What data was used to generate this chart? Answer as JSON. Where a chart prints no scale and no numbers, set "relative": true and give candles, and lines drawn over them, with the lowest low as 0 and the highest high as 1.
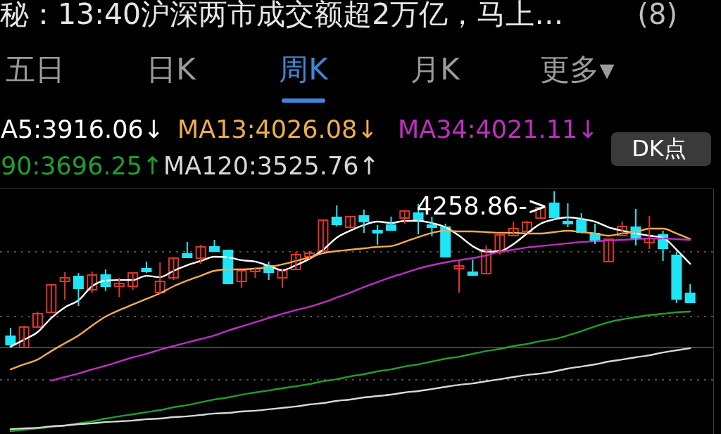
{
  "chart_data": {
    "type": "candlestick",
    "relative": true,
    "tick_labels": false,
    "legend": "top",
    "categories": [
      null,
      null,
      null,
      null,
      null,
      null,
      null,
      null,
      null,
      null,
      null,
      null,
      null,
      null,
      null,
      null,
      null,
      null,
      null,
      null,
      null,
      null,
      null,
      null,
      null,
      null,
      null,
      null,
      null,
      null,
      null,
      null,
      null,
      null,
      null,
      null,
      null,
      null,
      null,
      null,
      null,
      null,
      null,
      null,
      null,
      null,
      null,
      null,
      null,
      null,
      null
    ],
    "ohlc": [
      [
        0.072,
        0.126,
        0.009,
        0.018
      ],
      [
        0,
        0.14,
        0,
        0.131
      ],
      [
        0.131,
        0.23,
        0.131,
        0.216
      ],
      [
        0.225,
        0.405,
        0.221,
        0.401
      ],
      [
        0.423,
        0.482,
        0.306,
        0.446
      ],
      [
        0.455,
        0.477,
        0.266,
        0.378
      ],
      [
        0.369,
        0.486,
        0.351,
        0.464
      ],
      [
        0.464,
        0.5,
        0.36,
        0.392
      ],
      [
        0.392,
        0.446,
        0.324,
        0.41
      ],
      [
        0.392,
        0.482,
        0.369,
        0.477
      ],
      [
        0.505,
        0.55,
        0.477,
        0.486
      ],
      [
        0.351,
        0.545,
        0.342,
        0.423
      ],
      [
        0.446,
        0.577,
        0.432,
        0.572
      ],
      [
        0.599,
        0.676,
        0.572,
        0.577
      ],
      [
        0.572,
        0.658,
        0.536,
        0.644
      ],
      [
        0.644,
        0.689,
        0.613,
        0.617
      ],
      [
        0.622,
        0.626,
        0.405,
        0.41
      ],
      [
        0.423,
        0.495,
        0.383,
        0.491
      ],
      [
        0.486,
        0.514,
        0.446,
        0.505
      ],
      [
        0.523,
        0.55,
        0.432,
        0.482
      ],
      [
        0.446,
        0.5,
        0.383,
        0.491
      ],
      [
        0.5,
        0.613,
        0.495,
        0.595
      ],
      [
        0.581,
        0.617,
        0.568,
        0.604
      ],
      [
        0.617,
        0.82,
        0.613,
        0.815
      ],
      [
        0.833,
        0.91,
        0.775,
        0.788
      ],
      [
        0.77,
        0.842,
        0.761,
        0.838
      ],
      [
        0.842,
        0.883,
        0.734,
        0.806
      ],
      [
        0.748,
        0.784,
        0.658,
        0.734
      ],
      [
        0.784,
        0.838,
        0.752,
        0.752
      ],
      [
        0.829,
        0.878,
        0.793,
        0.874
      ],
      [
        0.86,
        0.919,
        0.725,
        0.815
      ],
      [
        0.784,
        0.838,
        0.712,
        0.77
      ],
      [
        0.77,
        0.793,
        0.577,
        0.581
      ],
      [
        0.505,
        0.554,
        0.351,
        0.523
      ],
      [
        0.482,
        0.563,
        0.459,
        0.464
      ],
      [
        0.473,
        0.653,
        0.468,
        0.626
      ],
      [
        0.613,
        0.725,
        0.595,
        0.721
      ],
      [
        0.716,
        0.806,
        0.712,
        0.761
      ],
      [
        0.743,
        0.811,
        0.739,
        0.802
      ],
      [
        0.829,
        0.901,
        0.824,
        0.896
      ],
      [
        0.923,
        1,
        0.82,
        0.833
      ],
      [
        0.806,
        0.923,
        0.77,
        0.793
      ],
      [
        0.815,
        0.86,
        0.73,
        0.739
      ],
      [
        0.73,
        0.793,
        0.662,
        0.685
      ],
      [
        0.55,
        0.698,
        0.545,
        0.694
      ],
      [
        0.716,
        0.806,
        0.712,
        0.775
      ],
      [
        0.77,
        0.887,
        0.653,
        0.703
      ],
      [
        0.671,
        0.842,
        0.631,
        0.698
      ],
      [
        0.721,
        0.748,
        0.554,
        0.635
      ],
      [
        0.59,
        0.613,
        0.284,
        0.311
      ],
      [
        0.347,
        0.405,
        0.284,
        0.288
      ]
    ],
    "colors": [
      "#1fe5f5",
      "#e0352b",
      "#e0352b",
      "#e0352b",
      "#e0352b",
      "#1fe5f5",
      "#e0352b",
      "#1fe5f5",
      "#e0352b",
      "#e0352b",
      "#1fe5f5",
      "#e0352b",
      "#e0352b",
      "#1fe5f5",
      "#e0352b",
      "#1fe5f5",
      "#1fe5f5",
      "#e0352b",
      "#e0352b",
      "#1fe5f5",
      "#e0352b",
      "#e0352b",
      "#e0352b",
      "#e0352b",
      "#1fe5f5",
      "#e0352b",
      "#1fe5f5",
      "#1fe5f5",
      "#1fe5f5",
      "#e0352b",
      "#1fe5f5",
      "#1fe5f5",
      "#1fe5f5",
      "#e0352b",
      "#1fe5f5",
      "#e0352b",
      "#e0352b",
      "#e0352b",
      "#e0352b",
      "#e0352b",
      "#1fe5f5",
      "#1fe5f5",
      "#1fe5f5",
      "#1fe5f5",
      "#e0352b",
      "#e0352b",
      "#1fe5f5",
      "#e0352b",
      "#1fe5f5",
      "#1fe5f5",
      "#1fe5f5"
    ],
    "series": [
      {
        "name": "A5:3916.06↓",
        "type": "line",
        "color": "#ffffff",
        "values": [
          0.005,
          0.05,
          0.099,
          0.189,
          0.257,
          0.302,
          0.392,
          0.428,
          0.432,
          0.432,
          0.459,
          0.45,
          0.491,
          0.527,
          0.554,
          0.581,
          0.577,
          0.559,
          0.55,
          0.523,
          0.495,
          0.527,
          0.568,
          0.626,
          0.703,
          0.748,
          0.784,
          0.806,
          0.797,
          0.811,
          0.811,
          0.797,
          0.77,
          0.716,
          0.649,
          0.613,
          0.617,
          0.662,
          0.73,
          0.793,
          0.82,
          0.833,
          0.824,
          0.806,
          0.77,
          0.748,
          0.73,
          0.716,
          0.703,
          0.626,
          0.536
        ]
      },
      {
        "name": "MA13:4026.08↓",
        "type": "line",
        "color": "#f0ad4e",
        "values": [
          -0.14,
          -0.108,
          -0.077,
          -0.023,
          0.027,
          0.077,
          0.14,
          0.198,
          0.239,
          0.275,
          0.311,
          0.347,
          0.392,
          0.428,
          0.459,
          0.491,
          0.5,
          0.5,
          0.505,
          0.514,
          0.532,
          0.554,
          0.577,
          0.604,
          0.617,
          0.626,
          0.635,
          0.644,
          0.649,
          0.676,
          0.707,
          0.734,
          0.748,
          0.743,
          0.743,
          0.739,
          0.734,
          0.734,
          0.73,
          0.73,
          0.739,
          0.748,
          0.739,
          0.73,
          0.716,
          0.73,
          0.739,
          0.761,
          0.761,
          0.73,
          0.694
        ]
      },
      {
        "name": "MA34:4021.11↓",
        "type": "line",
        "color": "#c02ec0",
        "values": [
          null,
          null,
          null,
          -0.212,
          -0.189,
          -0.167,
          -0.14,
          -0.117,
          -0.09,
          -0.063,
          -0.041,
          -0.014,
          0.009,
          0.032,
          0.054,
          0.077,
          0.108,
          0.135,
          0.162,
          0.189,
          0.216,
          0.239,
          0.261,
          0.288,
          0.32,
          0.351,
          0.387,
          0.419,
          0.45,
          0.477,
          0.505,
          0.527,
          0.545,
          0.559,
          0.572,
          0.59,
          0.613,
          0.626,
          0.64,
          0.649,
          0.658,
          0.667,
          0.676,
          0.68,
          0.685,
          0.689,
          0.694,
          0.698,
          0.698,
          0.694,
          0.689
        ]
      },
      {
        "name": "90:3696.25↑",
        "type": "line",
        "color": "#1f9e2c",
        "values": [
          -0.536,
          -0.527,
          -0.518,
          -0.509,
          -0.5,
          -0.486,
          -0.473,
          -0.455,
          -0.441,
          -0.428,
          -0.414,
          -0.401,
          -0.383,
          -0.369,
          -0.351,
          -0.333,
          -0.32,
          -0.302,
          -0.288,
          -0.275,
          -0.261,
          -0.248,
          -0.234,
          -0.216,
          -0.203,
          -0.185,
          -0.171,
          -0.153,
          -0.14,
          -0.122,
          -0.108,
          -0.09,
          -0.072,
          -0.059,
          -0.041,
          -0.023,
          -0.009,
          0.009,
          0.023,
          0.041,
          0.054,
          0.077,
          0.104,
          0.135,
          0.162,
          0.18,
          0.194,
          0.207,
          0.216,
          0.225,
          0.23
        ]
      },
      {
        "name": "MA120:3525.76↑",
        "type": "line",
        "color": "#d8d8d8",
        "values": [
          -0.523,
          -0.518,
          -0.514,
          -0.505,
          -0.5,
          -0.491,
          -0.486,
          -0.477,
          -0.473,
          -0.468,
          -0.459,
          -0.455,
          -0.446,
          -0.441,
          -0.432,
          -0.423,
          -0.419,
          -0.41,
          -0.405,
          -0.396,
          -0.387,
          -0.378,
          -0.365,
          -0.356,
          -0.342,
          -0.333,
          -0.32,
          -0.311,
          -0.302,
          -0.288,
          -0.279,
          -0.266,
          -0.252,
          -0.239,
          -0.23,
          -0.216,
          -0.203,
          -0.189,
          -0.176,
          -0.167,
          -0.153,
          -0.135,
          -0.122,
          -0.108,
          -0.09,
          -0.077,
          -0.063,
          -0.05,
          -0.032,
          -0.018,
          -0.005
        ]
      }
    ],
    "ref_lines": [
      {
        "axis": "y",
        "value": 0.613,
        "line_style": "dotted",
        "color": "#4d4d4d"
      },
      {
        "axis": "y",
        "value": 0.198,
        "line_style": "dotted",
        "color": "#4d4d4d"
      },
      {
        "axis": "y",
        "value": 0,
        "line_style": "solid",
        "color": "#444444"
      },
      {
        "axis": "y",
        "value": -0.207,
        "line_style": "dotted",
        "color": "#4d4d4d"
      }
    ],
    "annotations": [
      "秘：13:40沪深两市成交额超2万亿，马上…",
      "(8)",
      "五日",
      "日K",
      "周K",
      "月K",
      "更多▾",
      "DK点",
      "4258.86->"
    ]
  }
}
